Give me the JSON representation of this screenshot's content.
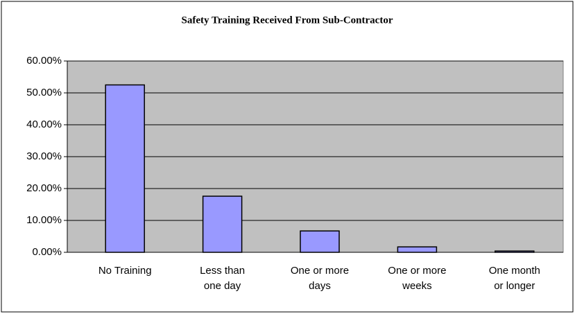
{
  "chart_data": {
    "type": "bar",
    "title": "Safety Training Received From Sub-Contractor",
    "categories": [
      "No Training",
      "Less than one day",
      "One or more days",
      "One or more weeks",
      "One month or longer"
    ],
    "values": [
      52.5,
      17.6,
      6.7,
      1.7,
      0.4
    ],
    "color": "#9999ff",
    "ylim": [
      0,
      60
    ],
    "yticks": [
      {
        "value": 0,
        "label": "0.00%"
      },
      {
        "value": 10,
        "label": "10.00%"
      },
      {
        "value": 20,
        "label": "20.00%"
      },
      {
        "value": 30,
        "label": "30.00%"
      },
      {
        "value": 40,
        "label": "40.00%"
      },
      {
        "value": 50,
        "label": "50.00%"
      },
      {
        "value": 60,
        "label": "60.00%"
      }
    ],
    "grid": true
  }
}
